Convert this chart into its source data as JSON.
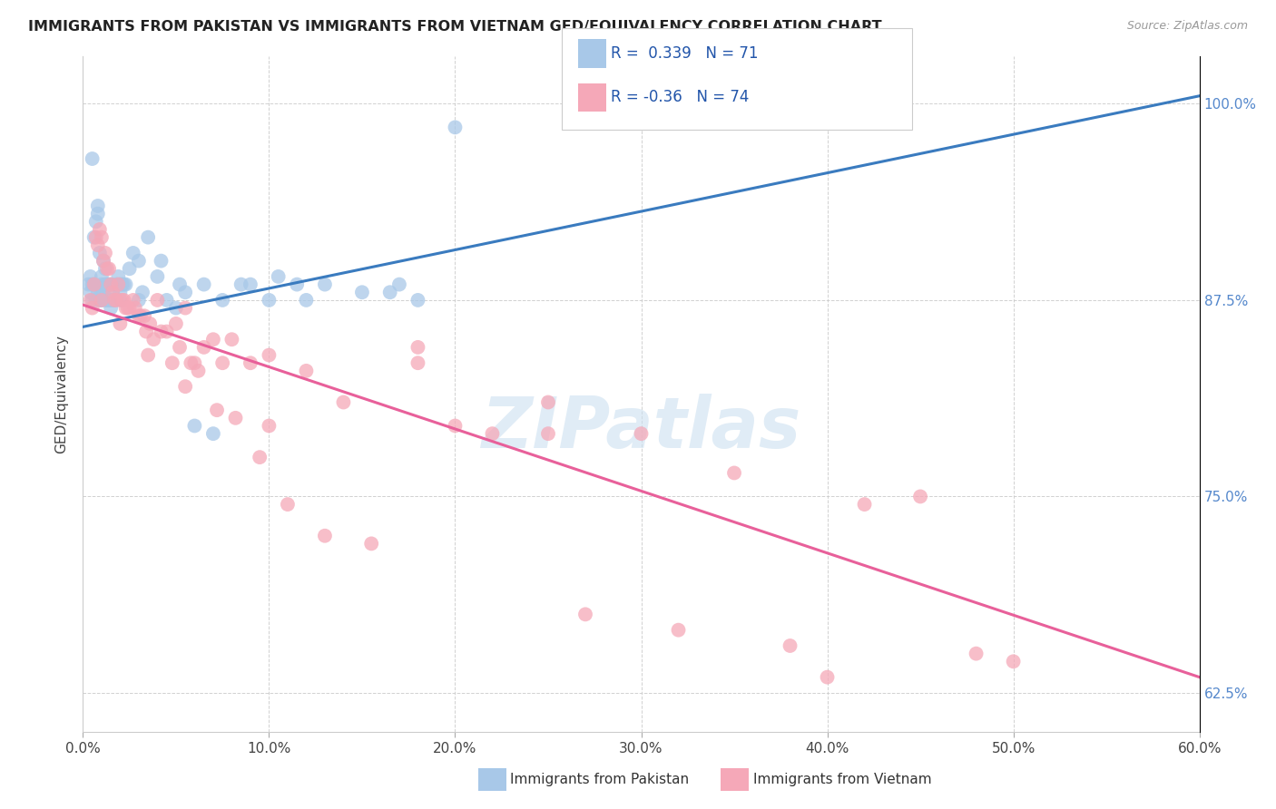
{
  "title": "IMMIGRANTS FROM PAKISTAN VS IMMIGRANTS FROM VIETNAM GED/EQUIVALENCY CORRELATION CHART",
  "source": "Source: ZipAtlas.com",
  "ylabel": "GED/Equivalency",
  "xmin": 0.0,
  "xmax": 60.0,
  "ymin": 60.0,
  "ymax": 103.0,
  "yticks": [
    62.5,
    75.0,
    87.5,
    100.0
  ],
  "xticks": [
    0.0,
    10.0,
    20.0,
    30.0,
    40.0,
    50.0,
    60.0
  ],
  "R_pakistan": 0.339,
  "N_pakistan": 71,
  "R_vietnam": -0.36,
  "N_vietnam": 74,
  "pakistan_color": "#a8c8e8",
  "vietnam_color": "#f5a8b8",
  "pakistan_line_color": "#3a7bbf",
  "vietnam_line_color": "#e8609a",
  "watermark_color": "#cce0f0",
  "watermark_text": "ZIPatlas",
  "pakistan_line_x0": 0.0,
  "pakistan_line_y0": 85.8,
  "pakistan_line_x1": 60.0,
  "pakistan_line_y1": 100.5,
  "vietnam_line_x0": 0.0,
  "vietnam_line_y0": 87.2,
  "vietnam_line_x1": 60.0,
  "vietnam_line_y1": 63.5,
  "pakistan_x": [
    0.3,
    0.4,
    0.4,
    0.5,
    0.5,
    0.6,
    0.6,
    0.7,
    0.7,
    0.8,
    0.8,
    0.9,
    0.9,
    1.0,
    1.0,
    1.0,
    1.0,
    1.1,
    1.1,
    1.2,
    1.2,
    1.2,
    1.3,
    1.3,
    1.4,
    1.4,
    1.5,
    1.5,
    1.6,
    1.6,
    1.7,
    1.8,
    1.9,
    2.0,
    2.0,
    2.1,
    2.2,
    2.3,
    2.5,
    2.7,
    3.0,
    3.2,
    3.5,
    4.0,
    4.5,
    5.0,
    5.5,
    6.0,
    7.0,
    7.5,
    8.5,
    9.0,
    10.5,
    11.5,
    13.0,
    15.0,
    16.5,
    17.0,
    18.0,
    0.5,
    0.8,
    1.0,
    1.5,
    2.0,
    3.0,
    4.2,
    5.2,
    6.5,
    10.0,
    12.0,
    20.0
  ],
  "pakistan_y": [
    88.5,
    88.0,
    89.0,
    87.5,
    88.5,
    88.5,
    91.5,
    87.5,
    92.5,
    88.0,
    93.5,
    87.5,
    90.5,
    87.5,
    88.0,
    88.5,
    89.0,
    88.0,
    90.0,
    87.5,
    88.5,
    89.5,
    87.5,
    88.5,
    87.5,
    88.5,
    87.5,
    88.5,
    87.5,
    88.0,
    87.5,
    88.5,
    89.0,
    87.5,
    88.5,
    88.5,
    88.5,
    88.5,
    89.5,
    90.5,
    90.0,
    88.0,
    91.5,
    89.0,
    87.5,
    87.0,
    88.0,
    79.5,
    79.0,
    87.5,
    88.5,
    88.5,
    89.0,
    88.5,
    88.5,
    88.0,
    88.0,
    88.5,
    87.5,
    96.5,
    93.0,
    87.5,
    87.0,
    88.0,
    87.5,
    90.0,
    88.5,
    88.5,
    87.5,
    87.5,
    98.5
  ],
  "vietnam_x": [
    0.4,
    0.5,
    0.6,
    0.7,
    0.8,
    0.9,
    1.0,
    1.0,
    1.1,
    1.2,
    1.3,
    1.4,
    1.5,
    1.6,
    1.7,
    1.8,
    1.9,
    2.0,
    2.1,
    2.2,
    2.3,
    2.4,
    2.5,
    2.7,
    2.8,
    3.0,
    3.1,
    3.3,
    3.4,
    3.5,
    3.6,
    3.8,
    4.0,
    4.2,
    4.5,
    4.8,
    5.0,
    5.2,
    5.5,
    5.8,
    6.0,
    6.2,
    6.5,
    7.0,
    7.2,
    7.5,
    8.0,
    8.2,
    9.0,
    9.5,
    10.0,
    11.0,
    12.0,
    13.0,
    14.0,
    15.5,
    18.0,
    20.0,
    22.0,
    25.0,
    27.0,
    30.0,
    32.0,
    35.0,
    38.0,
    40.0,
    42.0,
    45.0,
    48.0,
    50.0,
    5.5,
    10.0,
    18.0,
    25.0
  ],
  "vietnam_y": [
    87.5,
    87.0,
    88.5,
    91.5,
    91.0,
    92.0,
    91.5,
    87.5,
    90.0,
    90.5,
    89.5,
    89.5,
    88.5,
    88.0,
    87.5,
    87.5,
    88.5,
    86.0,
    87.5,
    87.5,
    87.0,
    87.0,
    87.0,
    87.5,
    87.0,
    86.5,
    86.5,
    86.5,
    85.5,
    84.0,
    86.0,
    85.0,
    87.5,
    85.5,
    85.5,
    83.5,
    86.0,
    84.5,
    87.0,
    83.5,
    83.5,
    83.0,
    84.5,
    85.0,
    80.5,
    83.5,
    85.0,
    80.0,
    83.5,
    77.5,
    84.0,
    74.5,
    83.0,
    72.5,
    81.0,
    72.0,
    84.5,
    79.5,
    79.0,
    79.0,
    67.5,
    79.0,
    66.5,
    76.5,
    65.5,
    63.5,
    74.5,
    75.0,
    65.0,
    64.5,
    82.0,
    79.5,
    83.5,
    81.0
  ]
}
